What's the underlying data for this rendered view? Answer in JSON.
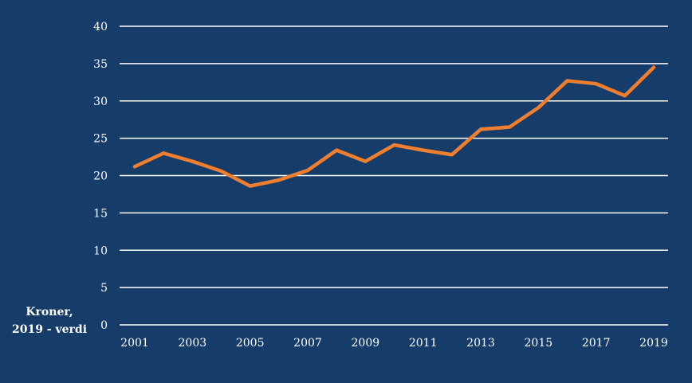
{
  "chart_data": {
    "type": "line",
    "x": [
      2001,
      2002,
      2003,
      2004,
      2005,
      2006,
      2007,
      2008,
      2009,
      2010,
      2011,
      2012,
      2013,
      2014,
      2015,
      2016,
      2017,
      2018,
      2019
    ],
    "x_tick_labels": [
      "2001",
      "2003",
      "2005",
      "2007",
      "2009",
      "2011",
      "2013",
      "2015",
      "2017",
      "2019"
    ],
    "y_tick_labels": [
      "0",
      "5",
      "10",
      "15",
      "20",
      "25",
      "30",
      "35",
      "40"
    ],
    "series": [
      {
        "values": [
          21.2,
          23.0,
          21.9,
          20.6,
          18.6,
          19.4,
          20.7,
          23.4,
          21.9,
          24.1,
          23.4,
          22.8,
          26.2,
          26.5,
          29.1,
          32.7,
          32.3,
          30.7,
          34.5
        ],
        "color": "#f07e2f"
      }
    ],
    "ylabel": [
      "Kroner,",
      "2019 - verdi"
    ],
    "xlim": [
      2001,
      2019
    ],
    "ylim": [
      0,
      40
    ],
    "grid": "horizontal",
    "legend": "none",
    "background": "#163d6a",
    "grid_color": "#ffffff",
    "text_color": "#ffffff"
  }
}
